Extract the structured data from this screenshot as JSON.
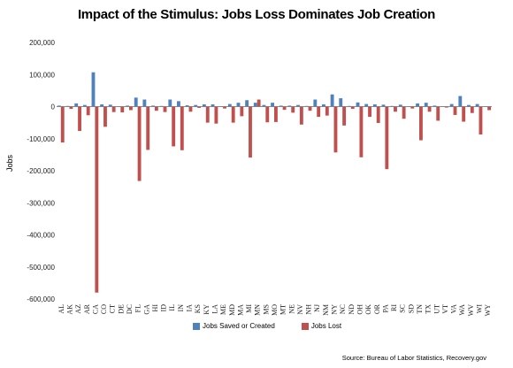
{
  "chart_data": {
    "type": "bar",
    "title": "Impact of the Stimulus: Jobs Loss Dominates Job Creation",
    "xlabel": "",
    "ylabel": "Jobs",
    "ylim": [
      -600000,
      200000
    ],
    "yticks": [
      200000,
      100000,
      0,
      -100000,
      -200000,
      -300000,
      -400000,
      -500000,
      -600000
    ],
    "ytick_labels": [
      "200,000",
      "100,000",
      "0",
      "-100,000",
      "-200,000",
      "-300,000",
      "-400,000",
      "-500,000",
      "-600,000"
    ],
    "categories": [
      "AL",
      "AK",
      "AZ",
      "AR",
      "CA",
      "CO",
      "CT",
      "DE",
      "DC",
      "FL",
      "GA",
      "HI",
      "ID",
      "IL",
      "IN",
      "IA",
      "KS",
      "KY",
      "LA",
      "ME",
      "MD",
      "MA",
      "MI",
      "MN",
      "MS",
      "MO",
      "MT",
      "NE",
      "NV",
      "NH",
      "NJ",
      "NM",
      "NY",
      "NC",
      "ND",
      "OH",
      "OK",
      "OR",
      "PA",
      "RI",
      "SC",
      "SD",
      "TN",
      "TX",
      "UT",
      "VT",
      "VA",
      "WA",
      "WV",
      "WI",
      "WY"
    ],
    "series": [
      {
        "name": "Jobs Saved or Created",
        "color": "#4f81bd",
        "values": [
          3000,
          2000,
          10000,
          5000,
          107000,
          7000,
          6000,
          1000,
          3000,
          28000,
          22000,
          3000,
          2000,
          22000,
          17000,
          4000,
          5000,
          7000,
          7000,
          1000,
          8000,
          12000,
          20000,
          12000,
          5000,
          12000,
          3000,
          3000,
          5000,
          2000,
          22000,
          7000,
          38000,
          26000,
          2000,
          13000,
          8000,
          7000,
          6000,
          2000,
          6000,
          1000,
          10000,
          12000,
          3000,
          1000,
          8000,
          33000,
          5000,
          8000,
          1000
        ]
      },
      {
        "name": "Jobs Lost",
        "color": "#c0504d",
        "values": [
          -112000,
          -7000,
          -76000,
          -27000,
          -580000,
          -63000,
          -17000,
          -18000,
          -11000,
          -232000,
          -135000,
          -13000,
          -17000,
          -124000,
          -136000,
          -16000,
          -4000,
          -50000,
          -53000,
          -6000,
          -50000,
          -30000,
          -159000,
          22000,
          -49000,
          -48000,
          -10000,
          -19000,
          -56000,
          -13000,
          -32000,
          -28000,
          -143000,
          -59000,
          -7000,
          -158000,
          -32000,
          -51000,
          -195000,
          -16000,
          -38000,
          -6000,
          -105000,
          -16000,
          -44000,
          -3000,
          -26000,
          -47000,
          -20000,
          -87000,
          -11000
        ]
      }
    ],
    "legend_position": "bottom"
  },
  "legend": {
    "saved_label": "Jobs Saved or Created",
    "lost_label": "Jobs Lost"
  },
  "source": "Source: Bureau of Labor Statistics, Recovery.gov"
}
